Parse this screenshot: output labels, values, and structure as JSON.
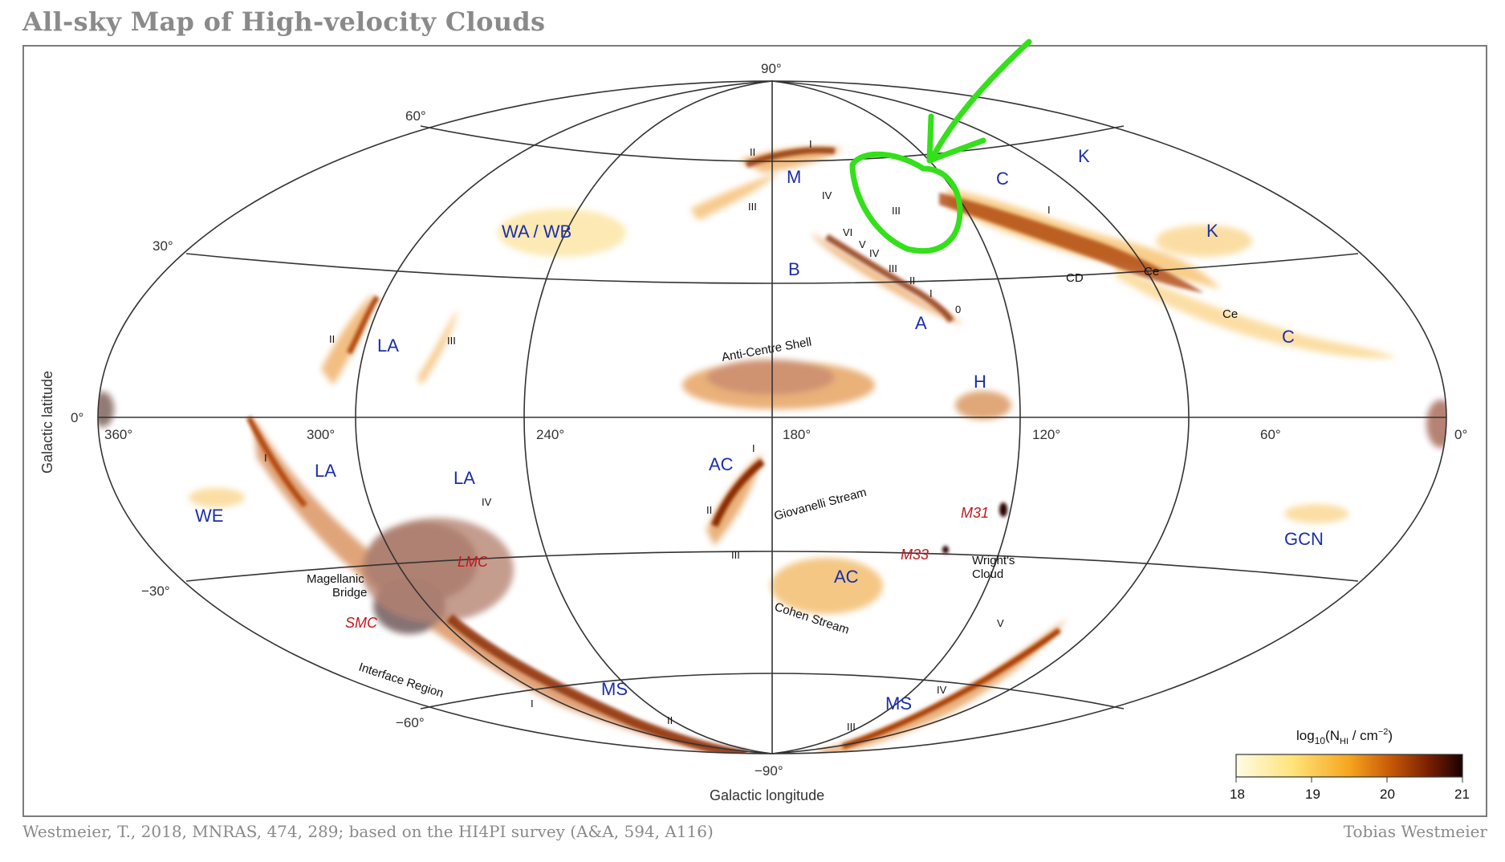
{
  "title": "All-sky Map of High-velocity Clouds",
  "footer": {
    "citation": "Westmeier, T., 2018, MNRAS, 474, 289; based on the HI4PI survey (A&A, 594, A116)",
    "author": "Tobias Westmeier"
  },
  "axes": {
    "x_label": "Galactic longitude",
    "y_label": "Galactic latitude",
    "lat_ticks": {
      "p90": "90°",
      "p60": "60°",
      "p30": "30°",
      "zero": "0°",
      "m30": "−30°",
      "m60": "−60°",
      "m90": "−90°"
    },
    "lon_ticks": {
      "l360": "360°",
      "l300": "300°",
      "l240": "240°",
      "l180": "180°",
      "l120": "120°",
      "l60": "60°",
      "l0": "0°"
    }
  },
  "colorbar": {
    "label_prefix": "log",
    "label_sub": "10",
    "label_body": "(N",
    "label_nsub": "HI",
    "label_units": " / cm",
    "label_exp": "−2",
    "label_close": ")",
    "ticks": [
      "18",
      "19",
      "20",
      "21"
    ],
    "colors": [
      "#fffbe6",
      "#ffe37a",
      "#f6a51f",
      "#c85a06",
      "#7a1f02",
      "#1a0200"
    ]
  },
  "complexes": {
    "wa_wb": "WA / WB",
    "m": "M",
    "c_upper": "C",
    "k_upper": "K",
    "k_right": "K",
    "b": "B",
    "a": "A",
    "c_right": "C",
    "la_upper": "LA",
    "h": "H",
    "la_left": "LA",
    "la_mid": "LA",
    "we": "WE",
    "ac_mid": "AC",
    "ac_low": "AC",
    "gcn": "GCN",
    "ms_left": "MS",
    "ms_right": "MS"
  },
  "galaxies": {
    "lmc": "LMC",
    "smc": "SMC",
    "m31": "M31",
    "m33": "M33"
  },
  "features": {
    "cd": "CD",
    "ce1": "Ce",
    "ce2": "Ce",
    "anti_centre": "Anti-Centre Shell",
    "giovanelli": "Giovanelli Stream",
    "cohen": "Cohen Stream",
    "wright1": "Wright's",
    "wright2": "Cloud",
    "mag_bridge1": "Magellanic",
    "mag_bridge2": "Bridge",
    "interface": "Interface Region"
  },
  "numerals": {
    "m_ii": "II",
    "m_i": "I",
    "m_iii": "III",
    "m_iv": "IV",
    "c_iii": "III",
    "c_i": "I",
    "a_vi": "VI",
    "a_v": "V",
    "a_iv": "IV",
    "a_iii": "III",
    "a_ii": "II",
    "a_i": "I",
    "a_0": "0",
    "la_ii": "II",
    "la_iii": "III",
    "la_i": "I",
    "la_iv": "IV",
    "ac_i": "I",
    "ac_ii": "II",
    "ac_iii": "III",
    "ms_i": "I",
    "ms_ii": "II",
    "ms_iii": "III",
    "ms_iv": "IV",
    "ms_v": "V"
  },
  "annotation": {
    "color": "#33e01a"
  }
}
